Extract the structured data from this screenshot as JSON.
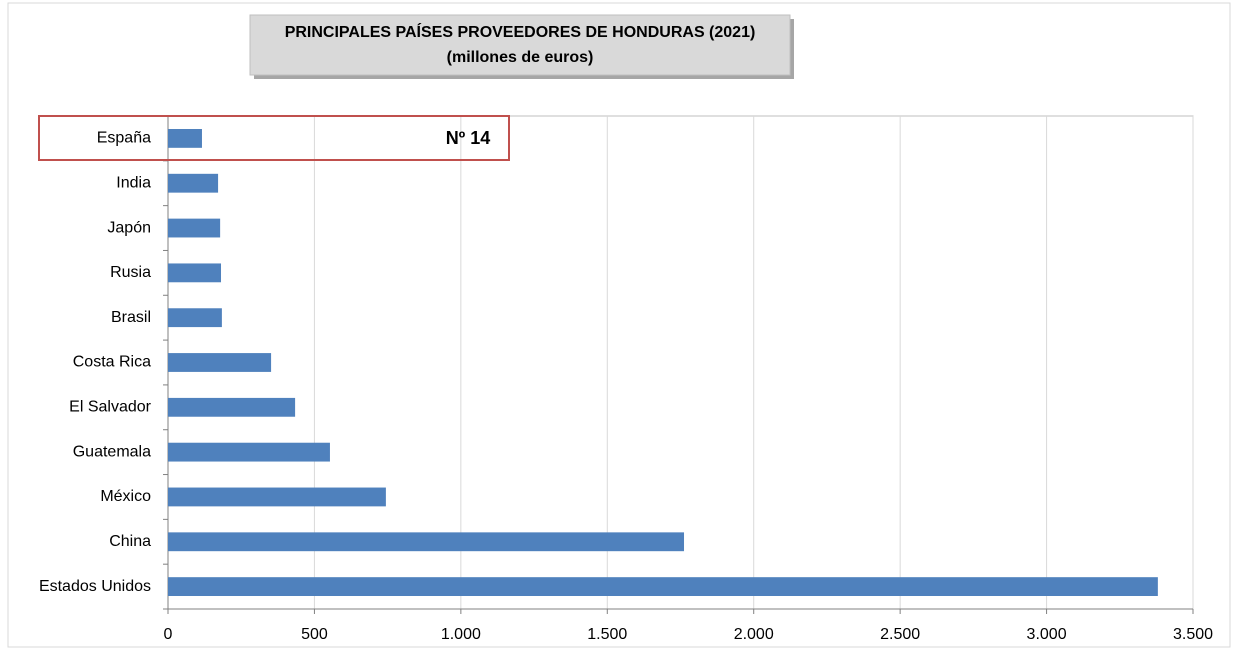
{
  "chart_data": {
    "type": "bar",
    "orientation": "horizontal",
    "title": "PRINCIPALES PAÍSES PROVEEDORES DE HONDURAS (2021)",
    "subtitle": "(millones de euros)",
    "annotation": "Nº 14",
    "categories": [
      "España",
      "India",
      "Japón",
      "Rusia",
      "Brasil",
      "Costa Rica",
      "El Salvador",
      "Guatemala",
      "México",
      "China",
      "Estados Unidos"
    ],
    "values": [
      116,
      171,
      178,
      181,
      184,
      352,
      434,
      553,
      744,
      1762,
      3380
    ],
    "color": "#4f81bd",
    "xlim": [
      0,
      3500
    ],
    "xticks": [
      0,
      500,
      {
        "value": 1000,
        "label": "1.000"
      },
      {
        "value": 1500,
        "label": "1.500"
      },
      {
        "value": 2000,
        "label": "2.000"
      },
      {
        "value": 2500,
        "label": "2.500"
      },
      {
        "value": 3000,
        "label": "3.000"
      },
      {
        "value": 3500,
        "label": "3.500"
      }
    ],
    "grid": true
  }
}
